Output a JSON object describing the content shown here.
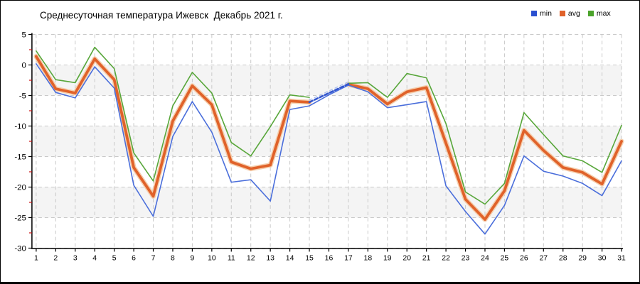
{
  "window": {
    "title": "Среднесуточная температура Ижевск  Декабрь 2021 г."
  },
  "legend": [
    {
      "label": "min",
      "color": "#2a4fd0"
    },
    {
      "label": "avg",
      "color": "#e0622a"
    },
    {
      "label": "max",
      "color": "#4ba32b"
    }
  ],
  "colors": {
    "band": "#f4f4f4",
    "grid": "#c9c9c9",
    "axis": "#000000",
    "minor_tick": "#cc1111",
    "min_line": "#4a6edb",
    "avg_line": "#e0622a",
    "avg_halo": "#f5cfae",
    "max_line": "#57a639",
    "forecast_line": "#3356cf",
    "forecast_halo": "#a9bdec"
  },
  "chart_data": {
    "type": "line",
    "title": "Среднесуточная температура Ижевск  Декабрь 2021 г.",
    "xlabel": "",
    "ylabel": "",
    "x": [
      1,
      2,
      3,
      4,
      5,
      6,
      7,
      8,
      9,
      10,
      11,
      12,
      13,
      14,
      15,
      16,
      17,
      18,
      19,
      20,
      21,
      22,
      23,
      24,
      25,
      26,
      27,
      28,
      29,
      30,
      31
    ],
    "x_tick_labels": [
      "1",
      "2",
      "3",
      "4",
      "5",
      "6",
      "7",
      "8",
      "9",
      "10",
      "11",
      "12",
      "13",
      "14",
      "15",
      "16",
      "17",
      "18",
      "19",
      "20",
      "21",
      "22",
      "23",
      "24",
      "25",
      "26",
      "27",
      "28",
      "29",
      "30",
      "31"
    ],
    "ylim": [
      -30,
      5
    ],
    "y_ticks": [
      5,
      0,
      -5,
      -10,
      -15,
      -20,
      -25,
      -30
    ],
    "y_minor_ticks": [
      2.5,
      -2.5,
      -7.5,
      -12.5,
      -17.5,
      -22.5,
      -27.5
    ],
    "grid": true,
    "band_pairs": [
      [
        0,
        -5
      ],
      [
        -10,
        -15
      ],
      [
        -20,
        -25
      ]
    ],
    "legend_position": "top-right",
    "series": [
      {
        "name": "min",
        "style": "solid",
        "values": [
          0.2,
          -4.5,
          -5.4,
          -0.3,
          -3.8,
          -19.7,
          -24.8,
          -11.7,
          -6.0,
          -11.0,
          -19.2,
          -18.8,
          -22.3,
          -7.3,
          -6.7,
          -4.9,
          -3.3,
          -4.4,
          -7.0,
          -6.5,
          -6.0,
          -19.8,
          -24.0,
          -27.7,
          -23.0,
          -14.9,
          -17.4,
          -18.2,
          -19.4,
          -21.4,
          -15.7
        ]
      },
      {
        "name": "avg",
        "style": "solid-thick",
        "values": [
          1.4,
          -3.9,
          -4.6,
          1.0,
          -2.4,
          -16.8,
          -21.5,
          -9.2,
          -3.4,
          -6.5,
          -15.9,
          -17.0,
          -16.4,
          -5.9,
          -6.1,
          null,
          -3.2,
          -3.9,
          -6.4,
          -4.4,
          -3.7,
          -12.8,
          -22.0,
          -25.3,
          -20.6,
          -10.7,
          -14.0,
          -16.8,
          -17.6,
          -19.5,
          -12.5
        ]
      },
      {
        "name": "max",
        "style": "solid",
        "values": [
          2.3,
          -2.4,
          -2.9,
          2.9,
          -0.6,
          -14.4,
          -19.0,
          -6.7,
          -1.2,
          -4.6,
          -12.7,
          -14.9,
          -10.1,
          -4.9,
          -5.3,
          null,
          -3.0,
          -2.9,
          -5.3,
          -1.4,
          -2.1,
          -9.6,
          -20.8,
          -22.8,
          -19.4,
          -7.8,
          -11.4,
          -14.9,
          -15.7,
          -17.6,
          -9.9
        ]
      },
      {
        "name": "avg-forecast",
        "style": "dashed",
        "x": [
          15,
          16,
          17
        ],
        "values": [
          -6.1,
          -4.6,
          -3.1
        ]
      }
    ]
  }
}
